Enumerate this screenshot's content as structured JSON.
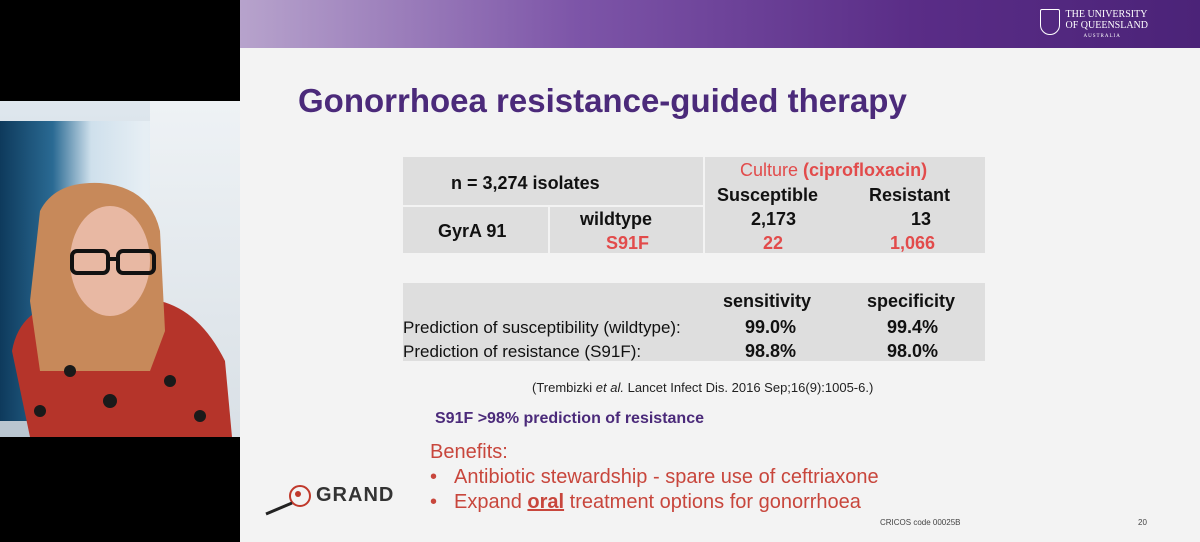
{
  "slide": {
    "title": "Gonorrhoea resistance-guided therapy",
    "logo": {
      "line1": "THE UNIVERSITY",
      "line2": "OF QUEENSLAND",
      "line3": "AUSTRALIA"
    },
    "table1": {
      "n_label": "n = 3,274 isolates",
      "culture_label": "Culture",
      "culture_drug": "(ciprofloxacin)",
      "col_susceptible": "Susceptible",
      "col_resistant": "Resistant",
      "row_gene": "GyrA 91",
      "row_wildtype": "wildtype",
      "row_s91f": "S91F",
      "wildtype_susceptible": "2,173",
      "wildtype_resistant": "13",
      "s91f_susceptible": "22",
      "s91f_resistant": "1,066"
    },
    "table2": {
      "col_sensitivity": "sensitivity",
      "col_specificity": "specificity",
      "row1_label": "Prediction of susceptibility (wildtype):",
      "row1_sensitivity": "99.0%",
      "row1_specificity": "99.4%",
      "row2_label": "Prediction of resistance (S91F):",
      "row2_sensitivity": "98.8%",
      "row2_specificity": "98.0%"
    },
    "citation_pre": "(Trembizki ",
    "citation_italic": "et al.",
    "citation_post": " Lancet Infect Dis. 2016 Sep;16(9):1005-6.)",
    "highlight": "S91F >98% prediction of resistance",
    "benefits_title": "Benefits:",
    "bullet_char": "•",
    "bullet1": "Antibiotic stewardship - spare use of ceftriaxone",
    "bullet2_pre": "Expand ",
    "bullet2_u": "oral",
    "bullet2_post": " treatment options for gonorrhoea",
    "grand_logo": "GRAND",
    "cricos": "CRICOS code 00025B",
    "page_number": "20"
  }
}
